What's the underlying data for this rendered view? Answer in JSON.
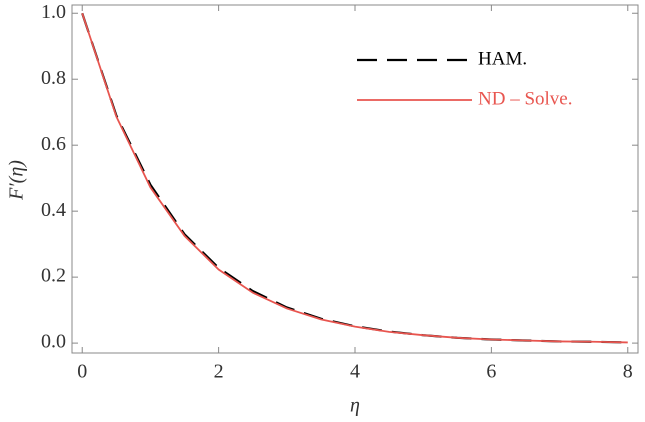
{
  "chart_data": {
    "type": "line",
    "x_label": "η",
    "y_label": "F′(η)",
    "x": [
      0,
      0.5,
      1,
      1.5,
      2,
      2.5,
      3,
      3.5,
      4,
      4.5,
      5,
      5.5,
      6,
      6.5,
      7,
      7.5,
      8
    ],
    "series": [
      {
        "name": "HAM.",
        "color": "#000000",
        "dash": true,
        "values": [
          1,
          0.69,
          0.48,
          0.33,
          0.228,
          0.158,
          0.108,
          0.074,
          0.051,
          0.035,
          0.024,
          0.016,
          0.011,
          0.008,
          0.005,
          0.004,
          0.002
        ]
      },
      {
        "name": "ND – Solve.",
        "color": "#e8554f",
        "dash": false,
        "values": [
          1,
          0.687,
          0.472,
          0.325,
          0.223,
          0.153,
          0.105,
          0.072,
          0.05,
          0.034,
          0.024,
          0.016,
          0.011,
          0.008,
          0.005,
          0.004,
          0.002
        ]
      }
    ],
    "xlim": [
      -0.15,
      8.15
    ],
    "ylim": [
      -0.03,
      1.025
    ],
    "xticks": [
      0,
      2,
      4,
      6,
      8
    ],
    "yticks": [
      {
        "value": 0,
        "label": "0.0"
      },
      {
        "value": 0.2,
        "label": "0.2"
      },
      {
        "value": 0.4,
        "label": "0.4"
      },
      {
        "value": 0.6,
        "label": "0.6"
      },
      {
        "value": 0.8,
        "label": "0.8"
      },
      {
        "value": 1,
        "label": "1.0"
      }
    ],
    "legend": "upper right"
  }
}
